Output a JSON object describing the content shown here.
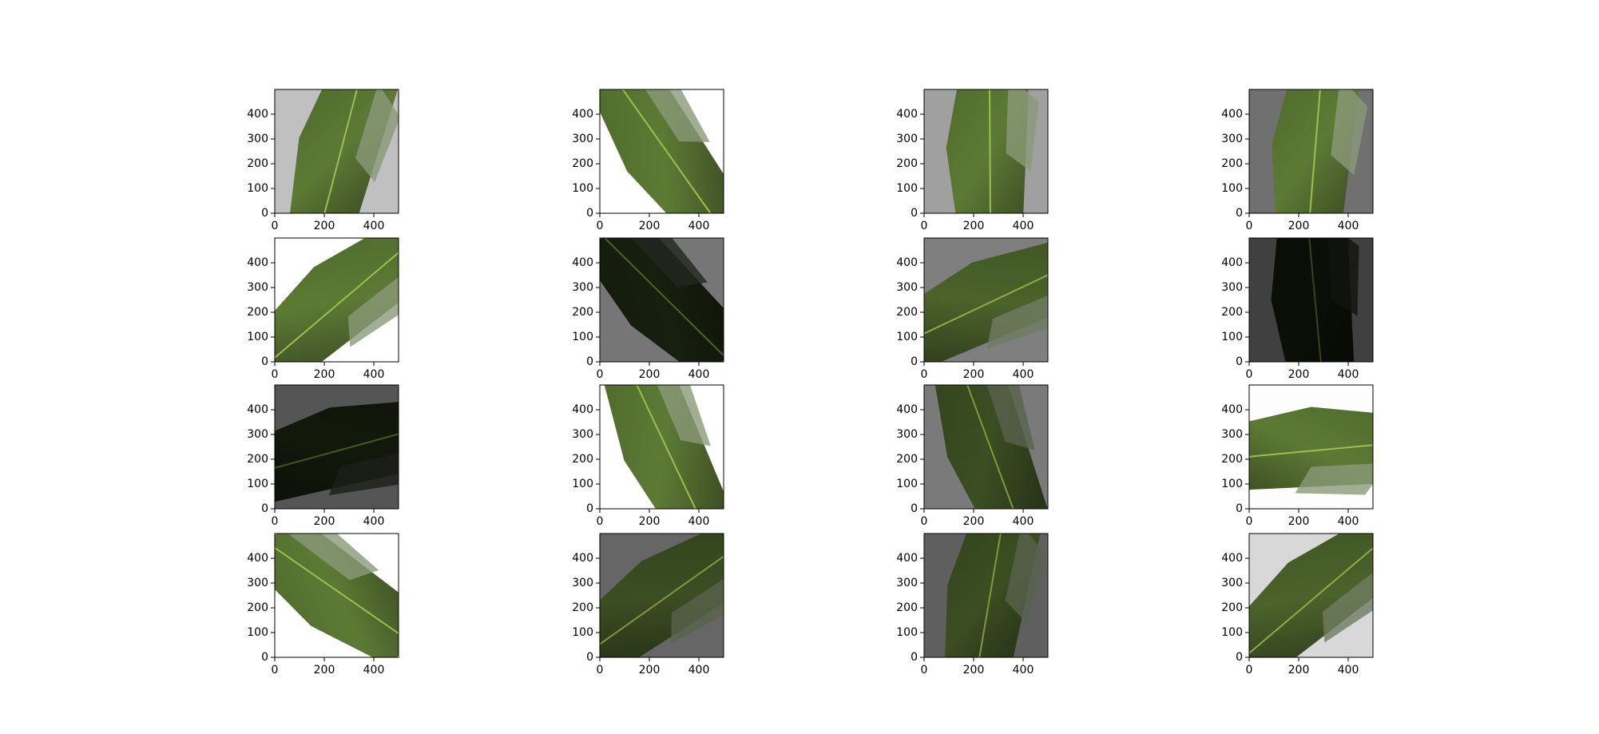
{
  "chart_data": [
    {
      "type": "image",
      "background": "#c0c0c0",
      "xlim": [
        0,
        500
      ],
      "ylim": [
        500,
        0
      ],
      "xticks": [
        0,
        200,
        400
      ],
      "yticks": [
        0,
        100,
        200,
        300,
        400
      ]
    },
    {
      "type": "image",
      "background": "#ffffff",
      "xlim": [
        0,
        500
      ],
      "ylim": [
        500,
        0
      ],
      "xticks": [
        0,
        200,
        400
      ],
      "yticks": [
        0,
        100,
        200,
        300,
        400
      ]
    },
    {
      "type": "image",
      "background": "#a0a0a0",
      "xlim": [
        0,
        500
      ],
      "ylim": [
        500,
        0
      ],
      "xticks": [
        0,
        200,
        400
      ],
      "yticks": [
        0,
        100,
        200,
        300,
        400
      ]
    },
    {
      "type": "image",
      "background": "#707070",
      "xlim": [
        0,
        500
      ],
      "ylim": [
        500,
        0
      ],
      "xticks": [
        0,
        200,
        400
      ],
      "yticks": [
        0,
        100,
        200,
        300,
        400
      ]
    },
    {
      "type": "image",
      "background": "#ffffff",
      "xlim": [
        0,
        500
      ],
      "ylim": [
        500,
        0
      ],
      "xticks": [
        0,
        200,
        400
      ],
      "yticks": [
        0,
        100,
        200,
        300,
        400
      ]
    },
    {
      "type": "image",
      "background": "#767676",
      "xlim": [
        0,
        500
      ],
      "ylim": [
        500,
        0
      ],
      "xticks": [
        0,
        200,
        400
      ],
      "yticks": [
        0,
        100,
        200,
        300,
        400
      ]
    },
    {
      "type": "image",
      "background": "#7f7f7f",
      "xlim": [
        0,
        500
      ],
      "ylim": [
        500,
        0
      ],
      "xticks": [
        0,
        200,
        400
      ],
      "yticks": [
        0,
        100,
        200,
        300,
        400
      ]
    },
    {
      "type": "image",
      "background": "#404040",
      "xlim": [
        0,
        500
      ],
      "ylim": [
        500,
        0
      ],
      "xticks": [
        0,
        200,
        400
      ],
      "yticks": [
        0,
        100,
        200,
        300,
        400
      ]
    },
    {
      "type": "image",
      "background": "#555555",
      "xlim": [
        0,
        500
      ],
      "ylim": [
        500,
        0
      ],
      "xticks": [
        0,
        200,
        400
      ],
      "yticks": [
        0,
        100,
        200,
        300,
        400
      ]
    },
    {
      "type": "image",
      "background": "#ffffff",
      "xlim": [
        0,
        500
      ],
      "ylim": [
        500,
        0
      ],
      "xticks": [
        0,
        200,
        400
      ],
      "yticks": [
        0,
        100,
        200,
        300,
        400
      ]
    },
    {
      "type": "image",
      "background": "#7a7a7a",
      "xlim": [
        0,
        500
      ],
      "ylim": [
        500,
        0
      ],
      "xticks": [
        0,
        200,
        400
      ],
      "yticks": [
        0,
        100,
        200,
        300,
        400
      ]
    },
    {
      "type": "image",
      "background": "#fdfdfd",
      "xlim": [
        0,
        500
      ],
      "ylim": [
        500,
        0
      ],
      "xticks": [
        0,
        200,
        400
      ],
      "yticks": [
        0,
        100,
        200,
        300,
        400
      ]
    },
    {
      "type": "image",
      "background": "#ffffff",
      "xlim": [
        0,
        500
      ],
      "ylim": [
        500,
        0
      ],
      "xticks": [
        0,
        200,
        400
      ],
      "yticks": [
        0,
        100,
        200,
        300,
        400
      ]
    },
    {
      "type": "image",
      "background": "#666666",
      "xlim": [
        0,
        500
      ],
      "ylim": [
        500,
        0
      ],
      "xticks": [
        0,
        200,
        400
      ],
      "yticks": [
        0,
        100,
        200,
        300,
        400
      ]
    },
    {
      "type": "image",
      "background": "#5f5f5f",
      "xlim": [
        0,
        500
      ],
      "ylim": [
        500,
        0
      ],
      "xticks": [
        0,
        200,
        400
      ],
      "yticks": [
        0,
        100,
        200,
        300,
        400
      ]
    },
    {
      "type": "image",
      "background": "#d8d8d8",
      "xlim": [
        0,
        500
      ],
      "ylim": [
        500,
        0
      ],
      "xticks": [
        0,
        200,
        400
      ],
      "yticks": [
        0,
        100,
        200,
        300,
        400
      ]
    }
  ]
}
